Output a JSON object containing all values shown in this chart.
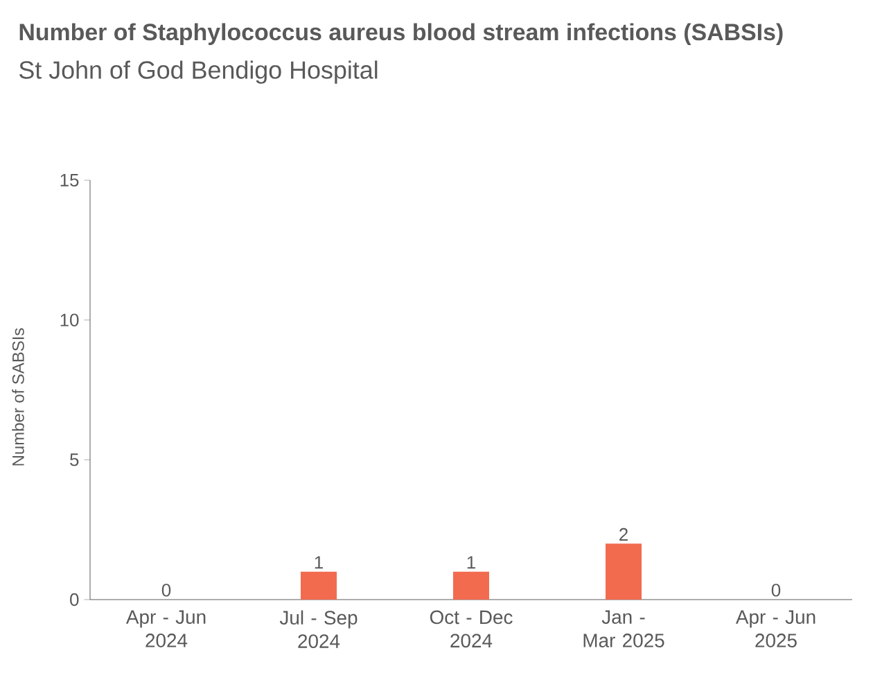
{
  "chart_data": {
    "type": "bar",
    "title": "Number of Staphylococcus aureus blood stream infections (SABSIs)",
    "subtitle": "St John of God Bendigo Hospital",
    "ylabel": "Number of SABSIs",
    "categories": [
      "Apr - Jun 2024",
      "Jul - Sep 2024",
      "Oct - Dec 2024",
      "Jan - Mar 2025",
      "Apr - Jun 2025"
    ],
    "values": [
      0,
      1,
      1,
      2,
      0
    ],
    "color": "#f26b4f",
    "ylim": [
      0,
      15
    ],
    "yticks": [
      0,
      5,
      10,
      15
    ],
    "data_labels": true
  }
}
